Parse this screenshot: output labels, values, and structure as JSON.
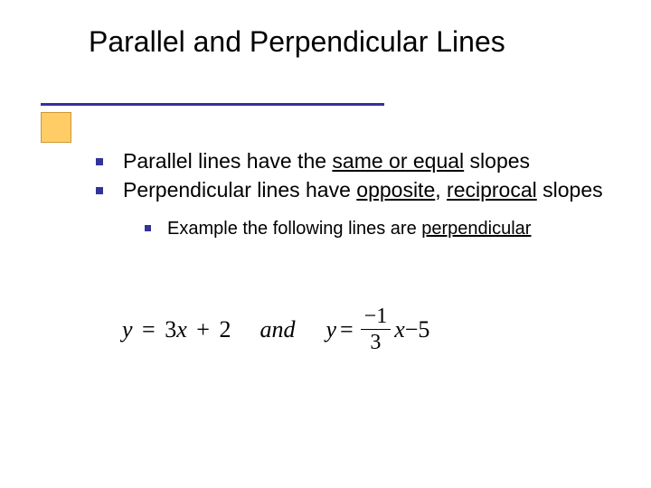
{
  "title": "Parallel and Perpendicular Lines",
  "colors": {
    "accent": "#333399",
    "accent_box_fill": "#ffcc66",
    "accent_box_border": "#cc9933",
    "background": "#ffffff",
    "text": "#000000"
  },
  "typography": {
    "title_fontsize": 32,
    "body_fontsize": 23,
    "sub_fontsize": 20,
    "math_fontsize": 26,
    "title_font": "Verdana",
    "math_font": "Times New Roman"
  },
  "bullets": [
    {
      "prefix": "Parallel lines have the ",
      "underlined": "same or equal",
      "suffix": " slopes"
    },
    {
      "prefix": "Perpendicular lines have ",
      "underlined1": "opposite",
      "mid": ", ",
      "underlined2": "reciprocal",
      "suffix": " slopes"
    }
  ],
  "sub_bullet": {
    "prefix": "Example the following lines are ",
    "underlined": "perpendicular"
  },
  "equations": {
    "eq1": {
      "lhs": "y",
      "eq": "=",
      "m": "3",
      "var": "x",
      "op": "+",
      "b": "2"
    },
    "connector": "and",
    "eq2": {
      "lhs": "y",
      "eq": "=",
      "frac_num": "−1",
      "frac_den": "3",
      "var": "x",
      "op": "−",
      "b": "5"
    }
  }
}
